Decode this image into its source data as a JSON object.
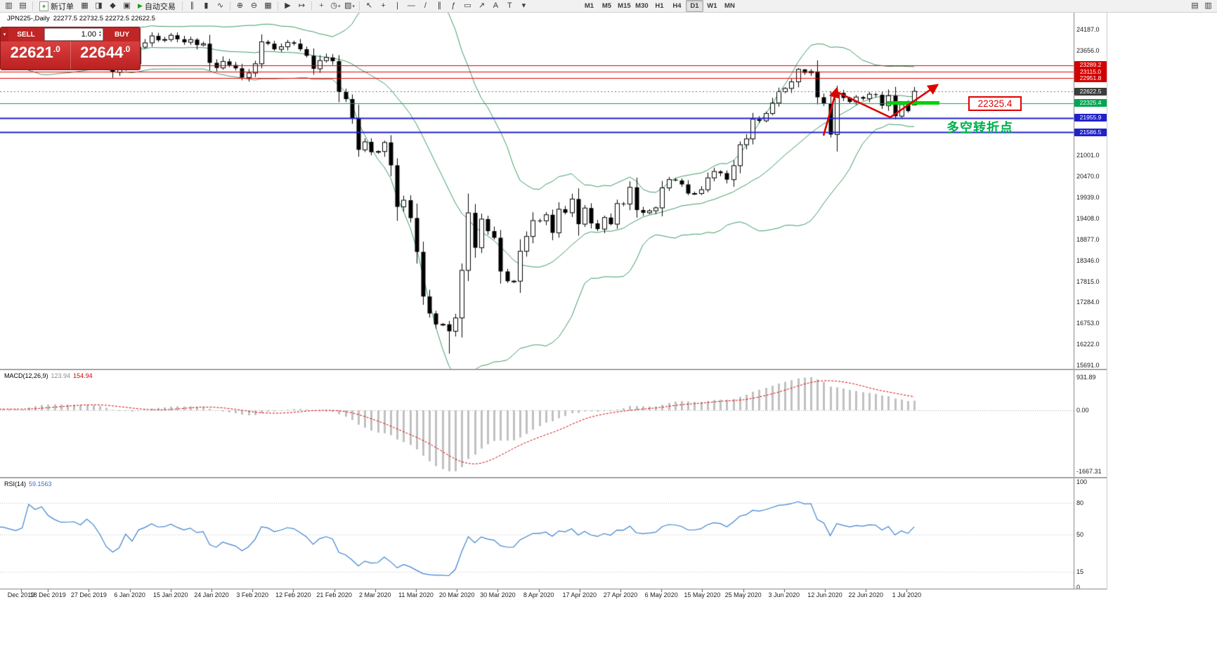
{
  "toolbar": {
    "window_icons": [
      {
        "name": "new-chart-icon",
        "glyph": "▥"
      },
      {
        "name": "profiles-icon",
        "glyph": "▤"
      }
    ],
    "new_order_label": "新订单",
    "mid_icons": [
      {
        "name": "market-watch-icon",
        "glyph": "▦"
      },
      {
        "name": "data-window-icon",
        "glyph": "◨"
      },
      {
        "name": "navigator-icon",
        "glyph": "◆"
      },
      {
        "name": "terminal-icon",
        "glyph": "▣"
      }
    ],
    "autotrade_label": "自动交易",
    "chart_type_icons": [
      {
        "name": "bar-chart-icon",
        "glyph": "∥"
      },
      {
        "name": "candlestick-icon",
        "glyph": "▮"
      },
      {
        "name": "line-chart-icon",
        "glyph": "∿"
      }
    ],
    "zoom_icons": [
      {
        "name": "zoom-in-icon",
        "glyph": "⊕"
      },
      {
        "name": "zoom-out-icon",
        "glyph": "⊖"
      },
      {
        "name": "tile-windows-icon",
        "glyph": "▦"
      }
    ],
    "scroll_icons": [
      {
        "name": "auto-scroll-icon",
        "glyph": "▶"
      },
      {
        "name": "chart-shift-icon",
        "glyph": "↦"
      }
    ],
    "insert_icons": [
      {
        "name": "indicators-icon",
        "glyph": "+",
        "color": "#0a8a0a"
      },
      {
        "name": "periods-icon",
        "glyph": "◷",
        "dropdown": true
      },
      {
        "name": "templates-icon",
        "glyph": "▨",
        "dropdown": true
      }
    ],
    "draw_icons": [
      {
        "name": "cursor-icon",
        "glyph": "↖"
      },
      {
        "name": "crosshair-icon",
        "glyph": "+"
      },
      {
        "name": "vertical-line-icon",
        "glyph": "|"
      },
      {
        "name": "horizontal-line-icon",
        "glyph": "—"
      },
      {
        "name": "trendline-icon",
        "glyph": "/"
      },
      {
        "name": "channel-icon",
        "glyph": "∥"
      },
      {
        "name": "fibonacci-icon",
        "glyph": "ƒ"
      },
      {
        "name": "shapes-icon",
        "glyph": "▭"
      },
      {
        "name": "arrows-tool-icon",
        "glyph": "↗"
      },
      {
        "name": "text-icon",
        "glyph": "A"
      },
      {
        "name": "text-label-icon",
        "glyph": "T"
      },
      {
        "name": "objects-dropdown-icon",
        "glyph": "▾"
      }
    ],
    "timeframes": [
      "M1",
      "M5",
      "M15",
      "M30",
      "H1",
      "H4",
      "D1",
      "W1",
      "MN"
    ],
    "active_timeframe": "D1",
    "right_icons": [
      {
        "name": "cascade-windows-icon",
        "glyph": "▤"
      },
      {
        "name": "tile-horizontal-icon",
        "glyph": "▥"
      }
    ]
  },
  "icons": {
    "collapse": "▾",
    "spin_up": "▴",
    "spin_down": "▾",
    "autotrade_play": "▶",
    "new_order_plus": "+"
  },
  "chart": {
    "symbol_label": "JPN225-,Daily"
  },
  "trade_panel": {
    "sell_label": "SELL",
    "buy_label": "BUY",
    "volume": "1.00",
    "sell_price": {
      "main": "22621",
      "sup": ".0"
    },
    "buy_price": {
      "main": "22644",
      "sup": ".0"
    }
  },
  "levels": [
    {
      "value": 23289.2,
      "label": "23289.2",
      "type": "red"
    },
    {
      "value": 23115.0,
      "label": "23115.0",
      "type": "red"
    },
    {
      "value": 22951.8,
      "label": "22951.8",
      "type": "red"
    },
    {
      "value": 22622.5,
      "label": "22622.5",
      "type": "bid"
    },
    {
      "value": 22325.4,
      "label": "22325.4",
      "type": "green"
    },
    {
      "value": 21955.9,
      "label": "21955.9",
      "type": "blue"
    },
    {
      "value": 21586.5,
      "label": "21586.5",
      "type": "blue"
    }
  ],
  "price_axis": {
    "max": 24187.0,
    "min": 15691.0,
    "ticks": [
      24187.0,
      23656.0,
      23125.0,
      22594.0,
      22063.0,
      21532.0,
      21001.0,
      20470.0,
      19939.0,
      19408.0,
      18877.0,
      18346.0,
      17815.0,
      17284.0,
      16753.0,
      16222.0,
      15691.0
    ]
  },
  "macd_header": {
    "name": "MACD(12,26,9)",
    "value_main": "123.94",
    "value_signal": "154.94"
  },
  "macd_axis": [
    "931.89",
    "0.00",
    "-1667.31"
  ],
  "rsi_header": {
    "name": "RSI(14)",
    "value": "59.1563"
  },
  "rsi_axis": [
    {
      "value": 100,
      "label": "100"
    },
    {
      "value": 80,
      "label": "80"
    },
    {
      "value": 50,
      "label": "50"
    },
    {
      "value": 15,
      "label": "15"
    },
    {
      "value": 0,
      "label": "0"
    }
  ],
  "annotations": {
    "price_box": "22325.4",
    "turning_point": "多空转折点"
  },
  "time_axis": [
    "Dec 2019",
    "18 Dec 2019",
    "27 Dec 2019",
    "6 Jan 2020",
    "15 Jan 2020",
    "24 Jan 2020",
    "3 Feb 2020",
    "12 Feb 2020",
    "21 Feb 2020",
    "2 Mar 2020",
    "11 Mar 2020",
    "20 Mar 2020",
    "30 Mar 2020",
    "8 Apr 2020",
    "17 Apr 2020",
    "27 Apr 2020",
    "6 May 2020",
    "15 May 2020",
    "25 May 2020",
    "3 Jun 2020",
    "12 Jun 2020",
    "22 Jun 2020",
    "1 Jul 2020"
  ],
  "colors": {
    "band": "#3c9a64",
    "bull": "#ffffff",
    "bear": "#000000",
    "wick": "#000000",
    "macd_hist": "#c0c0c0",
    "macd_signal": "#d40000",
    "rsi_line": "#3b82d0",
    "badge": {
      "red": "#d40000",
      "bid": "#3d3d3d",
      "green": "#00a651",
      "blue": "#2121cc"
    },
    "line": {
      "red": {
        "c": "#e00000",
        "w": 1
      },
      "bid": {
        "c": "#707070",
        "w": 1,
        "d": [
          2,
          3
        ]
      },
      "green": {
        "c": "#00a651",
        "w": 1
      },
      "blue": {
        "c": "#2121cc",
        "w": 2
      }
    },
    "highlight_green": "#00d200",
    "annotation_red": "#e00000",
    "annotation_green": "#00b050"
  },
  "chart_data": {
    "type": "candlestick",
    "symbol": "JPN225-",
    "timeframe": "Daily",
    "ylim": [
      15691.0,
      24187.0
    ],
    "visible_start": 19,
    "last_bar": {
      "open": 22277.5,
      "high": 22732.5,
      "low": 22272.5,
      "close": 22622.5
    },
    "indicators": {
      "bollinger": [
        20,
        2
      ],
      "macd": [
        12,
        26,
        9
      ],
      "rsi": [
        14
      ]
    },
    "closes": [
      23295,
      23330,
      23270,
      23350,
      23450,
      23480,
      23340,
      23310,
      23360,
      23430,
      23380,
      23425,
      23390,
      23410,
      23440,
      23460,
      23400,
      23370,
      23430,
      23430,
      23410,
      23392,
      23425,
      24023,
      23952,
      24066,
      23934,
      23864,
      23817,
      23821,
      23830,
      23782,
      23924,
      23838,
      23657,
      23320,
      23110,
      23205,
      23575,
      23320,
      23740,
      23850,
      24025,
      23916,
      23933,
      24041,
      23940,
      23864,
      23931,
      23795,
      23827,
      23344,
      23215,
      23379,
      23288,
      23205,
      22972,
      23085,
      23320,
      23874,
      23828,
      23686,
      23750,
      23861,
      23828,
      23688,
      23523,
      23193,
      23401,
      23479,
      23386,
      22605,
      22426,
      21948,
      21143,
      21344,
      21083,
      21100,
      21329,
      20750,
      19699,
      19867,
      19416,
      18560,
      17431,
      17002,
      16726,
      16727,
      16552,
      16888,
      18092,
      19547,
      18665,
      19389,
      19085,
      18917,
      18065,
      17818,
      17820,
      18576,
      18950,
      19353,
      19346,
      19499,
      19043,
      19639,
      19551,
      19897,
      19262,
      19669,
      19281,
      19137,
      19429,
      19262,
      19783,
      19771,
      20194,
      19619,
      19550,
      19600,
      19674,
      20179,
      20390,
      20366,
      20267,
      20037,
      20037,
      20133,
      20433,
      20595,
      20552,
      20388,
      20741,
      21271,
      21419,
      21916,
      21877,
      22062,
      22326,
      22614,
      22696,
      22864,
      23178,
      23091,
      23125,
      22472,
      22305,
      21530,
      22582,
      22456,
      22355,
      22478,
      22437,
      22549,
      22534,
      22260,
      22512,
      21995,
      22288,
      22122,
      22622.5
    ],
    "high_overrides": {
      "142": 23210,
      "143": 23185
    },
    "low_overrides": {
      "88": 15985,
      "147": 21455
    }
  }
}
